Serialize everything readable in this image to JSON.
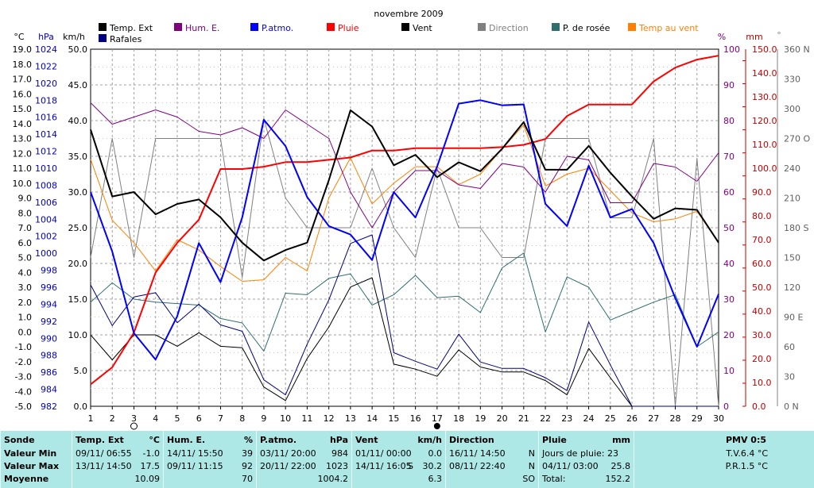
{
  "chart_data": {
    "type": "line",
    "title": "novembre 2009",
    "x": [
      1,
      2,
      3,
      4,
      5,
      6,
      7,
      8,
      9,
      10,
      11,
      12,
      13,
      14,
      15,
      16,
      17,
      18,
      19,
      20,
      21,
      22,
      23,
      24,
      25,
      26,
      27,
      28,
      29,
      30
    ],
    "x_ticks": [
      "1",
      "2",
      "3",
      "4",
      "5",
      "6",
      "7",
      "8",
      "9",
      "10",
      "11",
      "12",
      "13",
      "14",
      "15",
      "16",
      "17",
      "18",
      "19",
      "20",
      "21",
      "22",
      "23",
      "24",
      "25",
      "26",
      "27",
      "28",
      "29",
      "30"
    ],
    "axes": {
      "celsius": {
        "unit": "°C",
        "range": [
          -5.0,
          19.0
        ],
        "ticks": [
          "19.0",
          "18.0",
          "17.0",
          "16.0",
          "15.0",
          "14.0",
          "13.0",
          "12.0",
          "11.0",
          "10.0",
          "9.0",
          "8.0",
          "7.0",
          "6.0",
          "5.0",
          "4.0",
          "3.0",
          "2.0",
          "1.0",
          "0.0",
          "-1.0",
          "-2.0",
          "-3.0",
          "-4.0",
          "-5.0"
        ]
      },
      "hpa": {
        "unit": "hPa",
        "range": [
          982,
          1024
        ],
        "ticks": [
          "1024",
          "1022",
          "1020",
          "1018",
          "1016",
          "1014",
          "1012",
          "1010",
          "1008",
          "1006",
          "1004",
          "1002",
          "1000",
          "998",
          "996",
          "994",
          "992",
          "990",
          "988",
          "986",
          "984",
          "982"
        ]
      },
      "kmh": {
        "unit": "km/h",
        "range": [
          0,
          50
        ],
        "ticks": [
          "50.0",
          "45.0",
          "40.0",
          "35.0",
          "30.0",
          "25.0",
          "20.0",
          "15.0",
          "10.0",
          "5.0",
          "0.0"
        ]
      },
      "percent": {
        "unit": "%",
        "range": [
          0,
          100
        ],
        "ticks": [
          "100",
          "90",
          "80",
          "70",
          "60",
          "50",
          "40",
          "30",
          "20",
          "10",
          "0"
        ]
      },
      "mm": {
        "unit": "mm",
        "range": [
          0,
          155
        ],
        "ticks": [
          "150.0",
          "140.0",
          "130.0",
          "120.0",
          "110.0",
          "100.0",
          "90.0",
          "80.0",
          "70.0",
          "60.0",
          "50.0",
          "40.0",
          "30.0",
          "20.0",
          "10.0",
          "0.0"
        ]
      },
      "degrees": {
        "unit": "°",
        "range": [
          0,
          360
        ],
        "ticks": [
          "360 N",
          "330",
          "300",
          "270 O",
          "240",
          "210",
          "180 S",
          "150",
          "120",
          "90 E",
          "60",
          "30",
          "0 N"
        ]
      }
    },
    "legend": [
      {
        "name": "Temp. Ext",
        "color": "#000000"
      },
      {
        "name": "Hum. E.",
        "color": "#800080"
      },
      {
        "name": "P.atmo.",
        "color": "#0000ff"
      },
      {
        "name": "Pluie",
        "color": "#ff0000"
      },
      {
        "name": "Vent",
        "color": "#000000"
      },
      {
        "name": "Direction",
        "color": "#808080"
      },
      {
        "name": "P. de rosée",
        "color": "#2f6f6f"
      },
      {
        "name": "Temp au vent",
        "color": "#ff8000"
      },
      {
        "name": "Rafales",
        "color": "#000080"
      }
    ],
    "series": [
      {
        "name": "Temp. Ext",
        "axis": "celsius",
        "color": "#000000",
        "width": 2,
        "values": [
          13.6,
          9.1,
          9.4,
          7.9,
          8.6,
          8.9,
          7.7,
          6.0,
          4.8,
          5.5,
          6.0,
          10.2,
          14.9,
          13.8,
          11.2,
          11.9,
          10.4,
          11.4,
          10.8,
          12.3,
          14.1,
          10.9,
          10.9,
          12.5,
          10.7,
          9.1,
          7.6,
          8.3,
          8.2,
          6.0
        ]
      },
      {
        "name": "Hum. E.",
        "axis": "percent",
        "color": "#800080",
        "width": 1,
        "values": [
          85,
          79,
          81,
          83,
          81,
          77,
          76,
          78,
          75,
          83,
          79,
          75,
          60,
          50,
          60,
          66,
          66,
          62,
          61,
          68,
          67,
          60,
          70,
          69,
          57,
          57,
          68,
          67,
          63,
          71
        ]
      },
      {
        "name": "P.atmo.",
        "axis": "hpa",
        "color": "#0000ff",
        "width": 2,
        "values": [
          1007.2,
          1000.2,
          990.6,
          987.5,
          992.6,
          1001.2,
          996.6,
          1004.2,
          1015.7,
          1012.6,
          1006.6,
          1003.2,
          1002.2,
          999.2,
          1007.2,
          1004.2,
          1010.2,
          1017.6,
          1018.0,
          1017.4,
          1017.5,
          1005.8,
          1003.2,
          1010.3,
          1004.2,
          1005.2,
          1001.2,
          994.7,
          989.0,
          995.2
        ]
      },
      {
        "name": "Pluie",
        "axis": "mm",
        "color": "#ff0000",
        "width": 2,
        "values": [
          9.5,
          16.9,
          32.0,
          58.0,
          71.0,
          81.0,
          103.0,
          103.0,
          104.0,
          106.0,
          106.0,
          107.0,
          108.0,
          111.0,
          111.0,
          112.0,
          112.0,
          112.0,
          112.0,
          112.5,
          113.5,
          116.0,
          126.0,
          131.0,
          131.0,
          131.0,
          141.0,
          147.0,
          150.5,
          152.2
        ]
      },
      {
        "name": "Vent",
        "axis": "kmh",
        "color": "#000000",
        "width": 1,
        "values": [
          10.0,
          6.5,
          10.0,
          10.0,
          8.4,
          10.3,
          8.4,
          8.2,
          2.7,
          0.8,
          6.7,
          11.1,
          16.7,
          18.0,
          5.9,
          5.2,
          4.2,
          7.9,
          5.5,
          4.8,
          4.8,
          3.6,
          1.6,
          8.1,
          4.0,
          0.0,
          0.0,
          0.0,
          0.0,
          0.0
        ]
      },
      {
        "name": "Direction",
        "axis": "degrees",
        "color": "#808080",
        "width": 1,
        "values": [
          150,
          270,
          150,
          270,
          270,
          270,
          270,
          130,
          290,
          210,
          180,
          180,
          180,
          240,
          180,
          150,
          240,
          180,
          180,
          150,
          150,
          270,
          270,
          270,
          190,
          190,
          270,
          0,
          250,
          0
        ]
      },
      {
        "name": "P. de rosée",
        "axis": "celsius",
        "color": "#2f6f6f",
        "width": 1,
        "values": [
          2.0,
          3.3,
          2.2,
          2.0,
          1.9,
          1.8,
          0.9,
          0.6,
          -1.3,
          2.6,
          2.5,
          3.6,
          3.9,
          1.8,
          2.5,
          3.8,
          2.3,
          2.4,
          1.3,
          4.3,
          5.3,
          0.0,
          3.7,
          3.0,
          0.8,
          1.4,
          2.0,
          2.5,
          -1.0,
          0.0
        ]
      },
      {
        "name": "Temp au vent",
        "axis": "celsius",
        "color": "#ff8000",
        "width": 1,
        "values": [
          11.6,
          7.5,
          6.0,
          4.1,
          6.2,
          5.5,
          4.4,
          3.4,
          3.5,
          5.0,
          4.1,
          9.0,
          11.7,
          8.6,
          10.0,
          11.1,
          11.1,
          9.9,
          10.6,
          12.3,
          13.9,
          9.8,
          10.6,
          11.0,
          9.5,
          8.0,
          7.4,
          7.6,
          8.1,
          6.0
        ]
      },
      {
        "name": "Rafales",
        "axis": "kmh",
        "color": "#000080",
        "width": 1,
        "values": [
          17.0,
          11.3,
          15.3,
          15.9,
          11.7,
          14.3,
          11.4,
          10.5,
          3.7,
          1.6,
          8.7,
          14.9,
          22.8,
          24.0,
          7.5,
          6.3,
          5.2,
          10.1,
          6.2,
          5.3,
          5.3,
          4.0,
          2.2,
          11.8,
          5.8,
          0.0,
          0.0,
          0.0,
          0.0,
          0.0
        ]
      }
    ],
    "moon_marks": [
      {
        "day": 3,
        "phase": "first-quarter"
      },
      {
        "day": 17,
        "phase": "new"
      }
    ]
  },
  "stats": {
    "labels": {
      "sonde": "Sonde",
      "min": "Valeur Min",
      "max": "Valeur Max",
      "avg": "Moyenne"
    },
    "temp": {
      "title": "Temp. Ext",
      "unit": "°C",
      "min_time": "09/11/ 06:55",
      "min_val": "-1.0",
      "max_time": "13/11/ 14:50",
      "max_val": "17.5",
      "avg": "10.09"
    },
    "hum": {
      "title": "Hum. E.",
      "unit": "%",
      "min_time": "14/11/ 15:50",
      "min_val": "39",
      "max_time": "09/11/ 11:15",
      "max_val": "92",
      "avg": "70"
    },
    "press": {
      "title": "P.atmo.",
      "unit": "hPa",
      "min_time": "03/11/ 20:00",
      "min_val": "984",
      "max_time": "20/11/ 22:00",
      "max_val": "1023",
      "avg": "1004.2"
    },
    "wind": {
      "title": "Vent",
      "unit": "km/h",
      "min_time": "01/11/ 00:00",
      "min_val": "0.0",
      "max_time": "14/11/ 16:05",
      "max_dir": "S",
      "max_val": "30.2",
      "avg": "6.3"
    },
    "dir": {
      "title": "Direction",
      "min_time": "16/11/ 14:50",
      "min_val": "N",
      "max_time": "08/11/ 22:40",
      "max_val": "N",
      "avg": "SO"
    },
    "rain": {
      "title": "Pluie",
      "unit": "mm",
      "days_label": "Jours de pluie: 23",
      "max_time": "04/11/ 03:00",
      "max_val": "25.8",
      "total_label": "Total:",
      "total_val": "152.2"
    },
    "pmv": {
      "title": "PMV 0:5",
      "tv": "T.V.6.4 °C",
      "pr": "P.R.1.5 °C"
    }
  }
}
